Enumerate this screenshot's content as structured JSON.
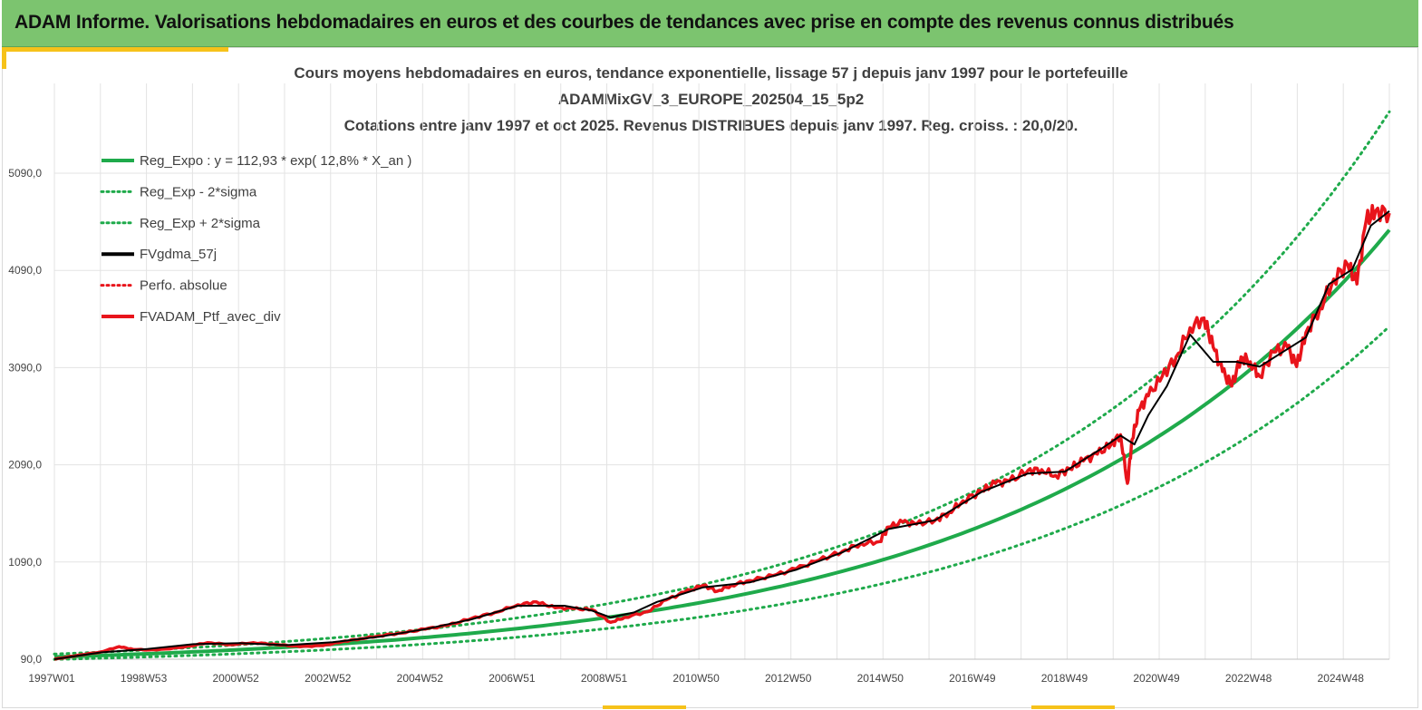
{
  "header": {
    "title": "ADAM Informe. Valorisations hebdomadaires en euros et des courbes de tendances avec prise en compte des revenus connus distribués"
  },
  "colors": {
    "banner": "#7cc46f",
    "accent": "#f6c21a",
    "trend": "#1faa4b",
    "moving_avg": "#000000",
    "portfolio": "#e8141b",
    "grid": "#e3e3e3"
  },
  "chart_data": {
    "type": "line",
    "title_lines": [
      "Cours moyens hebdomadaires  en euros, tendance exponentielle, lissage 57 j depuis janv 1997 pour le portefeuille",
      "ADAMMixGV_3_EUROPE_202504_15_5p2",
      "Cotations  entre janv 1997 et oct 2025. Revenus DISTRIBUES depuis janv 1997. Reg. croiss. : 20,0/20."
    ],
    "x_tick_labels": [
      "1997W01",
      "1998W53",
      "2000W52",
      "2002W52",
      "2004W52",
      "2006W51",
      "2008W51",
      "2010W50",
      "2012W50",
      "2014W50",
      "2016W49",
      "2018W49",
      "2020W49",
      "2022W48",
      "2024W48"
    ],
    "y_tick_labels": [
      "90,0",
      "1090,0",
      "2090,0",
      "3090,0",
      "4090,0",
      "5090,0"
    ],
    "y_ticks": [
      90,
      1090,
      2090,
      3090,
      4090,
      5090
    ],
    "x_range_years": [
      1997.0,
      2025.8
    ],
    "ylim": [
      90,
      5090
    ],
    "grid": true,
    "legend_position": "top-left",
    "legend": [
      {
        "name": "Reg_Expo : y = 112,93 * exp( 12,8% *  X_an )",
        "color": "#1faa4b",
        "style": "solid"
      },
      {
        "name": "Reg_Exp - 2*sigma",
        "color": "#1faa4b",
        "style": "dotted"
      },
      {
        "name": "Reg_Exp + 2*sigma",
        "color": "#1faa4b",
        "style": "dotted"
      },
      {
        "name": "FVgdma_57j",
        "color": "#000000",
        "style": "solid"
      },
      {
        "name": "Perfo. absolue",
        "color": "#e8141b",
        "style": "dotted"
      },
      {
        "name": "FVADAM_Ptf_avec_div",
        "color": "#e8141b",
        "style": "solid"
      }
    ],
    "regression": {
      "a": 112.93,
      "rate": 0.128,
      "base_year": 1997.0
    },
    "band_factors": {
      "lower": 0.78,
      "upper": 1.27
    },
    "series": [
      {
        "name": "FVADAM_Ptf_avec_div",
        "x": [
          1997.0,
          1997.5,
          1998.0,
          1998.4,
          1998.7,
          1999.2,
          1999.8,
          2000.3,
          2000.8,
          2001.3,
          2001.8,
          2002.3,
          2002.8,
          2003.2,
          2003.6,
          2004.0,
          2004.5,
          2005.0,
          2005.5,
          2006.0,
          2006.5,
          2007.0,
          2007.4,
          2007.8,
          2008.2,
          2008.6,
          2009.0,
          2009.3,
          2009.8,
          2010.2,
          2010.6,
          2011.0,
          2011.3,
          2011.6,
          2012.0,
          2012.5,
          2013.0,
          2013.5,
          2014.0,
          2014.4,
          2014.8,
          2015.0,
          2015.3,
          2015.6,
          2016.0,
          2016.3,
          2016.6,
          2017.0,
          2017.3,
          2017.6,
          2018.0,
          2018.3,
          2018.6,
          2018.9,
          2019.2,
          2019.5,
          2019.8,
          2020.0,
          2020.15,
          2020.25,
          2020.4,
          2020.6,
          2020.9,
          2021.2,
          2021.5,
          2021.8,
          2022.0,
          2022.2,
          2022.4,
          2022.6,
          2022.8,
          2023.0,
          2023.3,
          2023.6,
          2023.8,
          2024.0,
          2024.3,
          2024.6,
          2024.9,
          2025.1,
          2025.3,
          2025.5,
          2025.8
        ],
        "y": [
          90,
          130,
          165,
          220,
          190,
          185,
          215,
          260,
          240,
          260,
          240,
          220,
          230,
          270,
          300,
          330,
          360,
          400,
          440,
          510,
          570,
          650,
          680,
          620,
          610,
          600,
          470,
          520,
          580,
          700,
          780,
          850,
          790,
          850,
          900,
          950,
          1020,
          1110,
          1200,
          1280,
          1300,
          1450,
          1500,
          1480,
          1520,
          1600,
          1720,
          1820,
          1900,
          1920,
          2030,
          2040,
          1980,
          2050,
          2130,
          2200,
          2300,
          2400,
          1900,
          2350,
          2650,
          2800,
          3000,
          3200,
          3500,
          3600,
          3300,
          3050,
          2900,
          3200,
          3150,
          3000,
          3250,
          3300,
          3100,
          3450,
          3700,
          4000,
          4150,
          3950,
          4600,
          4700,
          4680
        ]
      },
      {
        "name": "FVgdma_57j",
        "x": [
          1997.0,
          1998.0,
          1999.0,
          2000.0,
          2001.0,
          2002.0,
          2003.0,
          2004.0,
          2005.0,
          2006.0,
          2007.0,
          2008.0,
          2008.6,
          2009.0,
          2009.5,
          2010.0,
          2011.0,
          2012.0,
          2013.0,
          2014.0,
          2015.0,
          2016.0,
          2017.0,
          2018.0,
          2018.8,
          2019.2,
          2019.6,
          2020.0,
          2020.3,
          2020.6,
          2021.0,
          2021.5,
          2022.0,
          2022.5,
          2023.0,
          2023.5,
          2024.0,
          2024.5,
          2025.0,
          2025.4,
          2025.8
        ],
        "y": [
          90,
          160,
          195,
          245,
          255,
          235,
          265,
          320,
          400,
          500,
          640,
          640,
          590,
          520,
          570,
          680,
          830,
          880,
          1010,
          1190,
          1430,
          1520,
          1810,
          2000,
          2020,
          2140,
          2260,
          2390,
          2300,
          2600,
          2900,
          3430,
          3150,
          3150,
          3100,
          3250,
          3400,
          3950,
          4100,
          4550,
          4700
        ]
      }
    ]
  }
}
